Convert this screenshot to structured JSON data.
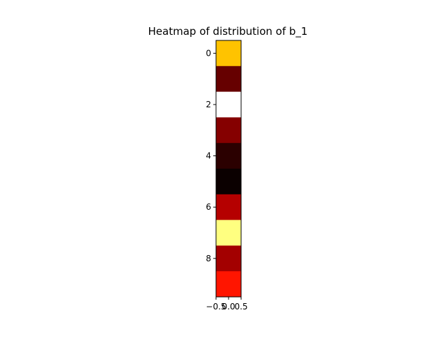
{
  "chart_data": {
    "type": "heatmap",
    "title": "Heatmap of distribution of b_1",
    "xlabel": "",
    "ylabel": "",
    "colormap": "hot",
    "rows": [
      0,
      1,
      2,
      3,
      4,
      5,
      6,
      7,
      8,
      9
    ],
    "columns": [
      0
    ],
    "cell_colors": [
      "#ffc300",
      "#660000",
      "#ffffff",
      "#850000",
      "#2b0000",
      "#0b0000",
      "#b50000",
      "#ffff80",
      "#a30000",
      "#ff1500"
    ],
    "y_ticks": [
      "0",
      "2",
      "4",
      "6",
      "8"
    ],
    "x_ticks": [
      "−0.5",
      "0.0",
      "0.5"
    ],
    "xlim": [
      -0.5,
      0.5
    ],
    "ylim": [
      9.5,
      -0.5
    ],
    "grid": false,
    "legend": "none"
  }
}
